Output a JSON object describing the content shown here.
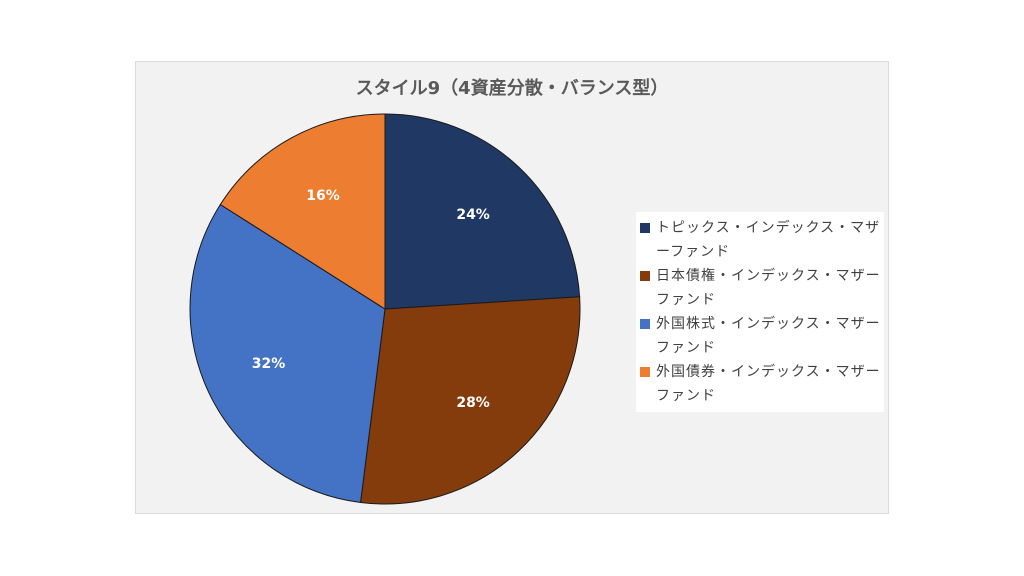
{
  "chart_data": {
    "type": "pie",
    "title": "スタイル9（4資産分散・バランス型）",
    "slices": [
      {
        "label": "トピックス・インデックス・マザーファンド",
        "value": 24,
        "display": "24%",
        "color": "#1f3864"
      },
      {
        "label": "日本債権・インデックス・マザーファンド",
        "value": 28,
        "display": "28%",
        "color": "#843c0c"
      },
      {
        "label": "外国株式・インデックス・マザーファンド",
        "value": 32,
        "display": "32%",
        "color": "#4472c4"
      },
      {
        "label": "外国債券・インデックス・マザーファンド",
        "value": 16,
        "display": "16%",
        "color": "#ed7d31"
      }
    ],
    "legend_position": "right"
  }
}
